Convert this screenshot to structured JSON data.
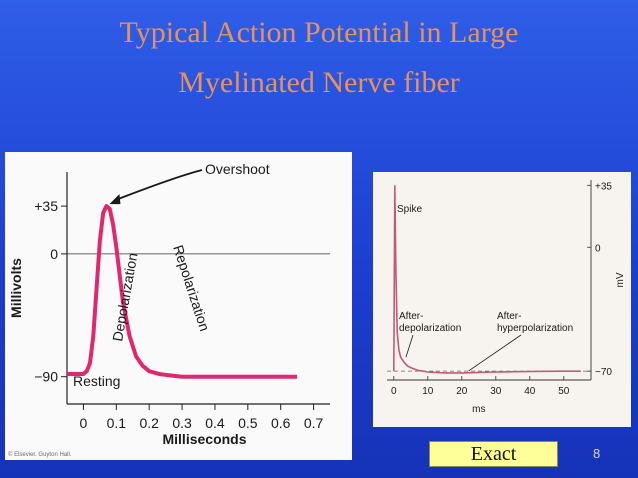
{
  "slide": {
    "title_line1": "Typical Action Potential in Large",
    "title_line2": "Myelinated Nerve fiber",
    "exact_label": "Exact",
    "slide_number": "8",
    "copyright_text": "© Elsevier. Guyton Hall."
  },
  "chart_data": [
    {
      "type": "line",
      "title": "",
      "xlabel": "Milliseconds",
      "ylabel": "Millivolts",
      "xlim": [
        -0.05,
        0.75
      ],
      "ylim": [
        -110,
        60
      ],
      "x_ticks": [
        "0",
        "0.1",
        "0.2",
        "0.3",
        "0.4",
        "0.5",
        "0.6",
        "0.7"
      ],
      "x_tick_values": [
        0,
        0.1,
        0.2,
        0.3,
        0.4,
        0.5,
        0.6,
        0.7
      ],
      "y_ticks": [
        "+35",
        "0",
        "−90"
      ],
      "y_tick_values": [
        35,
        0,
        -90
      ],
      "reference_line_y": 0,
      "line_color": "#e0286e",
      "series": [
        {
          "x": [
            -0.1,
            0.0,
            0.01,
            0.02,
            0.03,
            0.04,
            0.05,
            0.06,
            0.07,
            0.08,
            0.09,
            0.1,
            0.11,
            0.12,
            0.14,
            0.16,
            0.18,
            0.2,
            0.23,
            0.26,
            0.3,
            0.35,
            0.4,
            0.5,
            0.6,
            0.65
          ],
          "y": [
            -88,
            -88,
            -86,
            -80,
            -60,
            -25,
            10,
            30,
            35,
            33,
            22,
            5,
            -15,
            -35,
            -60,
            -75,
            -82,
            -86,
            -88,
            -89,
            -90,
            -90,
            -90,
            -90,
            -90,
            -90
          ]
        }
      ],
      "annotations": {
        "overshoot": "Overshoot",
        "depolarization": "Depolarization",
        "repolarization": "Repolarization",
        "resting": "Resting"
      }
    },
    {
      "type": "line",
      "title": "",
      "xlabel": "ms",
      "ylabel": "mV",
      "xlim": [
        -2,
        58
      ],
      "ylim": [
        -75,
        38
      ],
      "x_ticks": [
        "0",
        "10",
        "20",
        "30",
        "40",
        "50"
      ],
      "x_tick_values": [
        0,
        10,
        20,
        30,
        40,
        50
      ],
      "y_ticks": [
        "+35",
        "0",
        "−70"
      ],
      "y_tick_values": [
        35,
        0,
        -70
      ],
      "resting_level": -70,
      "line_color": "#c05a75",
      "series": [
        {
          "x": [
            0,
            0.3,
            0.6,
            1.0,
            1.5,
            2,
            3,
            4,
            5,
            7,
            10,
            15,
            20,
            30,
            40,
            50,
            55
          ],
          "y": [
            -70,
            35,
            -10,
            -48,
            -58,
            -62,
            -65,
            -67,
            -68,
            -69.5,
            -70.5,
            -71,
            -71,
            -70.5,
            -70.2,
            -70,
            -70
          ]
        }
      ],
      "annotations": {
        "spike": "Spike",
        "after_depol_line1": "After-",
        "after_depol_line2": "depolarization",
        "after_hyper_line1": "After-",
        "after_hyper_line2": "hyperpolarization"
      }
    }
  ]
}
